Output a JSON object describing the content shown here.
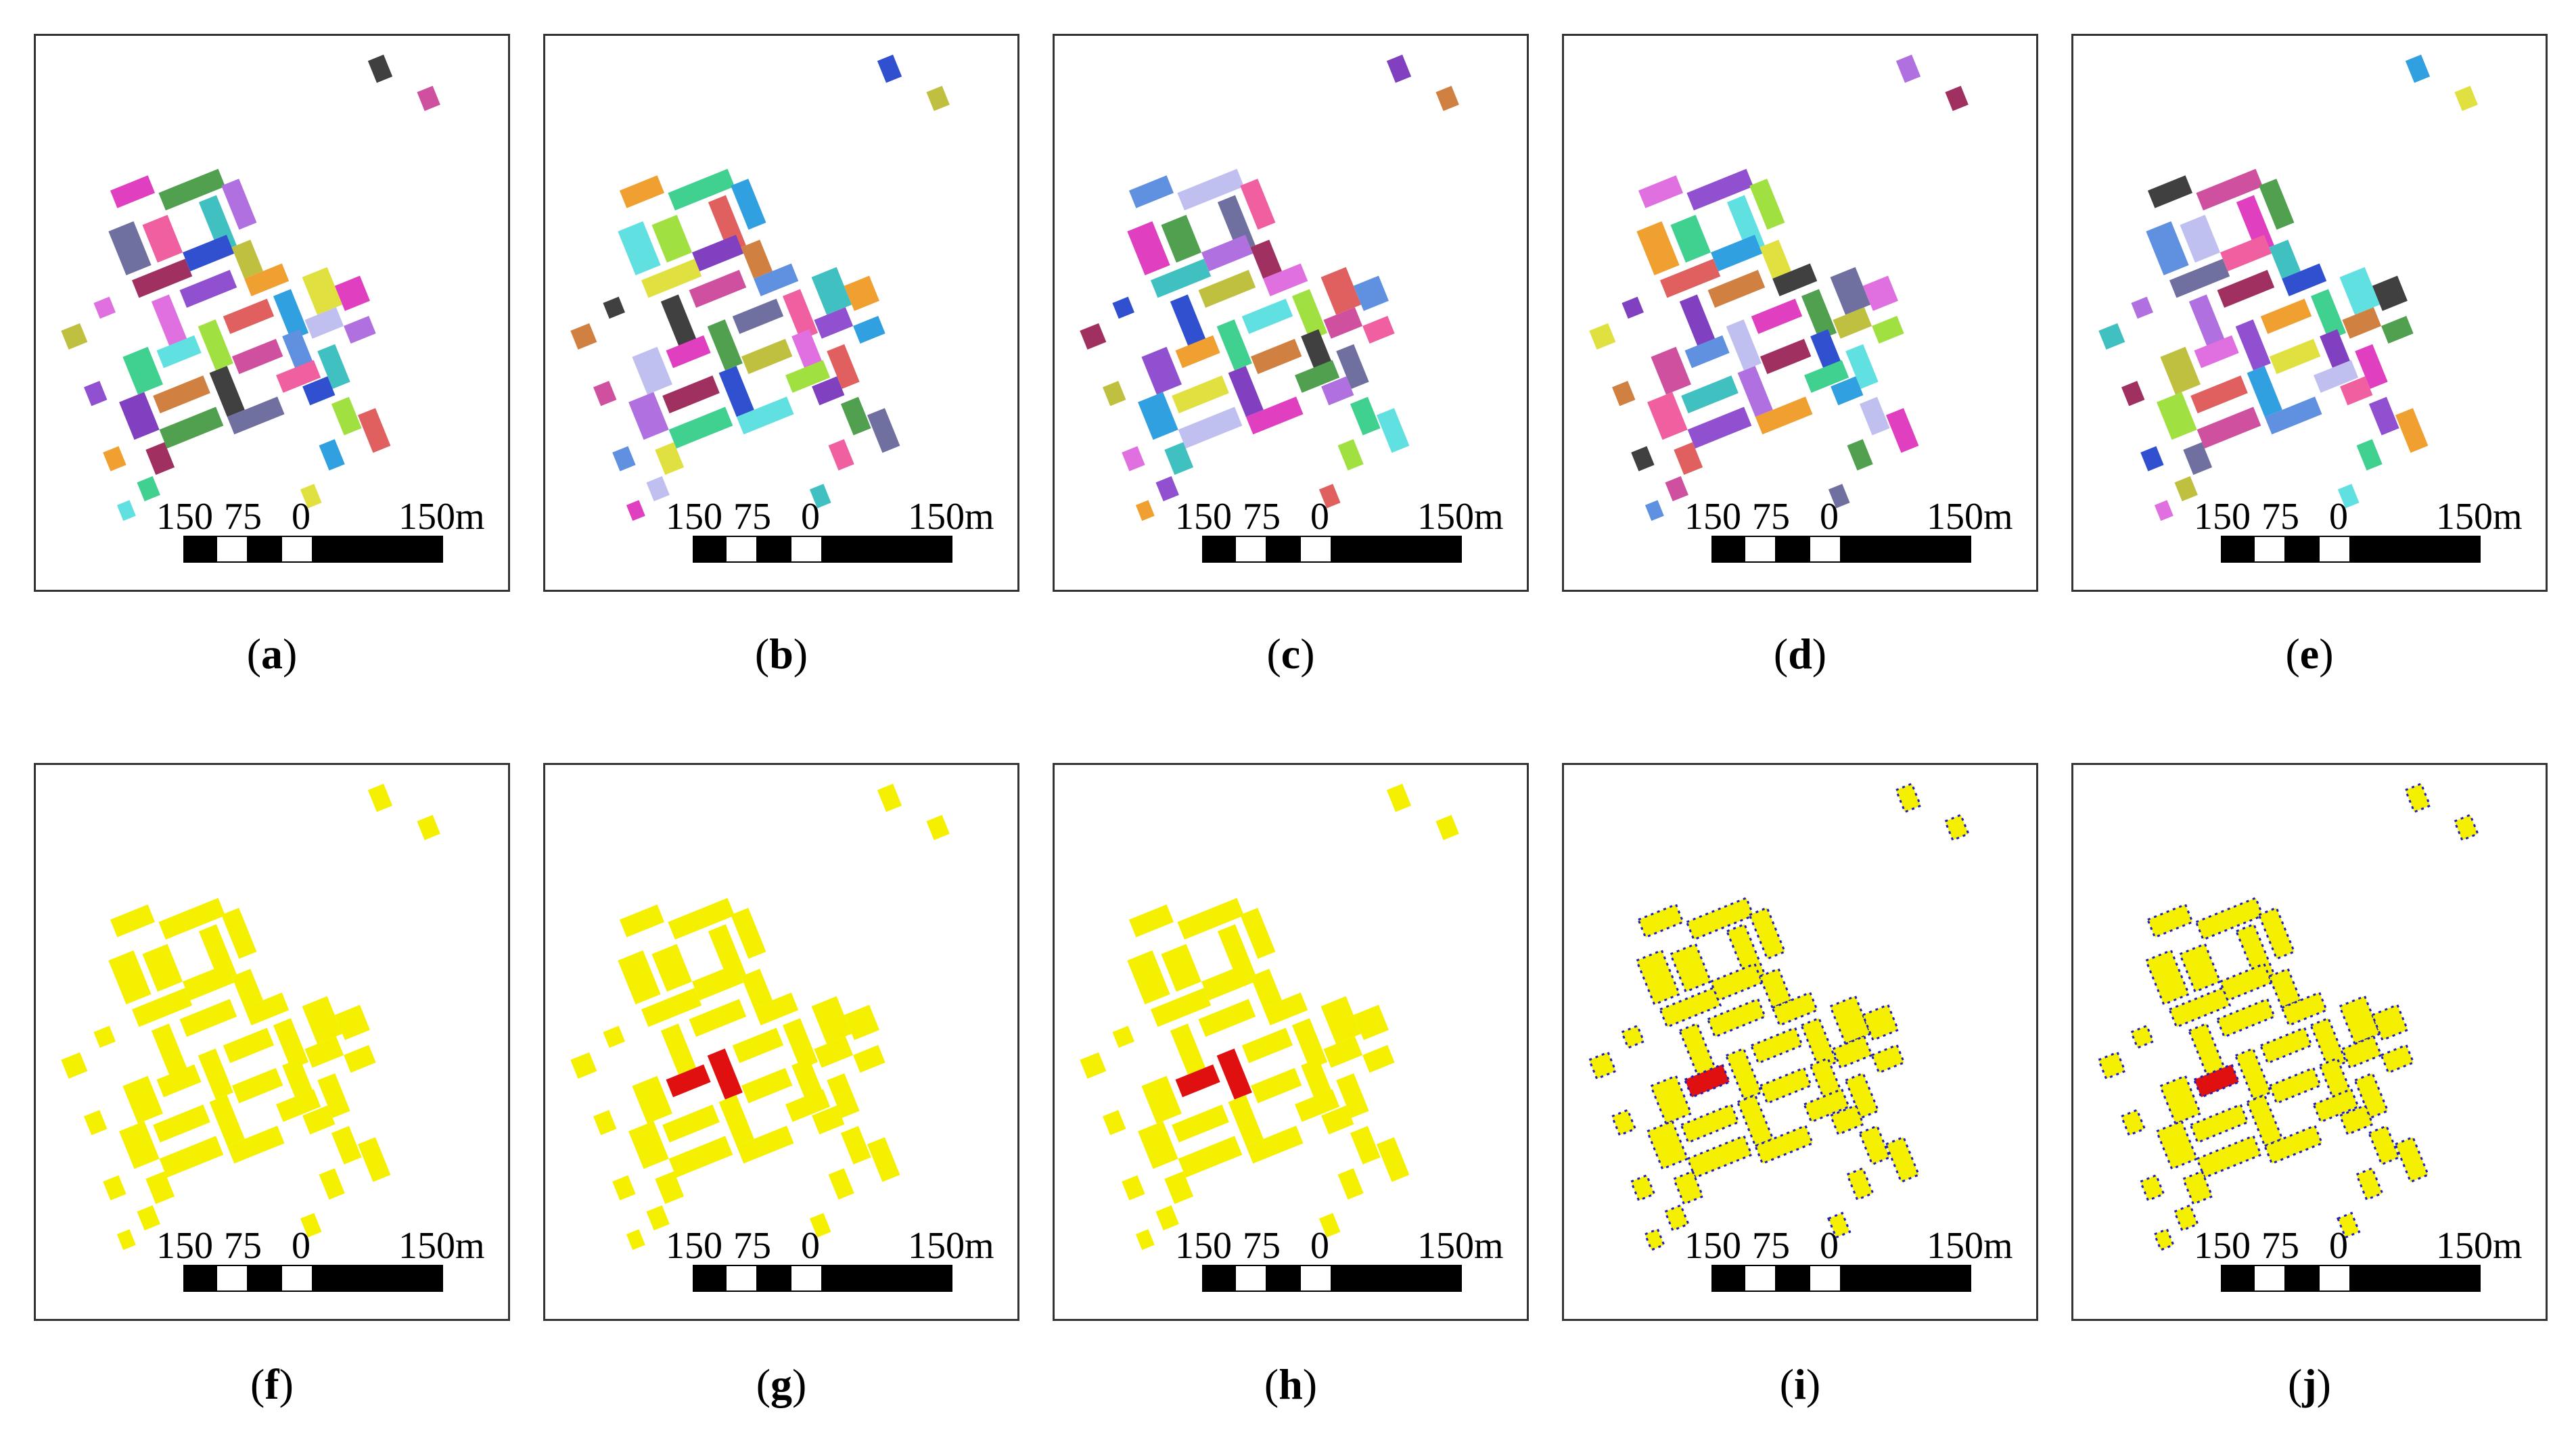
{
  "figure": {
    "panels": [
      {
        "id": "a",
        "label": "a",
        "scheme": "multi"
      },
      {
        "id": "b",
        "label": "b",
        "scheme": "multi"
      },
      {
        "id": "c",
        "label": "c",
        "scheme": "multi"
      },
      {
        "id": "d",
        "label": "d",
        "scheme": "multi"
      },
      {
        "id": "e",
        "label": "e",
        "scheme": "multi"
      },
      {
        "id": "f",
        "label": "f",
        "scheme": "yellow"
      },
      {
        "id": "g",
        "label": "g",
        "scheme": "yellow-red"
      },
      {
        "id": "h",
        "label": "h",
        "scheme": "yellow-red"
      },
      {
        "id": "i",
        "label": "i",
        "scheme": "yellow-red-blue"
      },
      {
        "id": "j",
        "label": "j",
        "scheme": "yellow-red-blue"
      }
    ],
    "scale_bar": {
      "labels": [
        "150",
        "75",
        "0",
        "150m"
      ]
    },
    "colors": {
      "building_yellow": "#f5f000",
      "highlight_red": "#e01010",
      "edge_blue": "#2020c0",
      "border": "#333333"
    },
    "palette": [
      "#e040c0",
      "#3050d0",
      "#a0e040",
      "#d050a0",
      "#40c0c0",
      "#f0a030",
      "#8040c0",
      "#50a050",
      "#c0c040",
      "#e06060",
      "#6090e0",
      "#b070e0",
      "#40d090",
      "#d08040",
      "#7070a0",
      "#e070e0",
      "#30a0e0",
      "#c0c0f0",
      "#a03060",
      "#60e0e0",
      "#404040",
      "#f060a0",
      "#9050d0",
      "#e0e040"
    ]
  }
}
